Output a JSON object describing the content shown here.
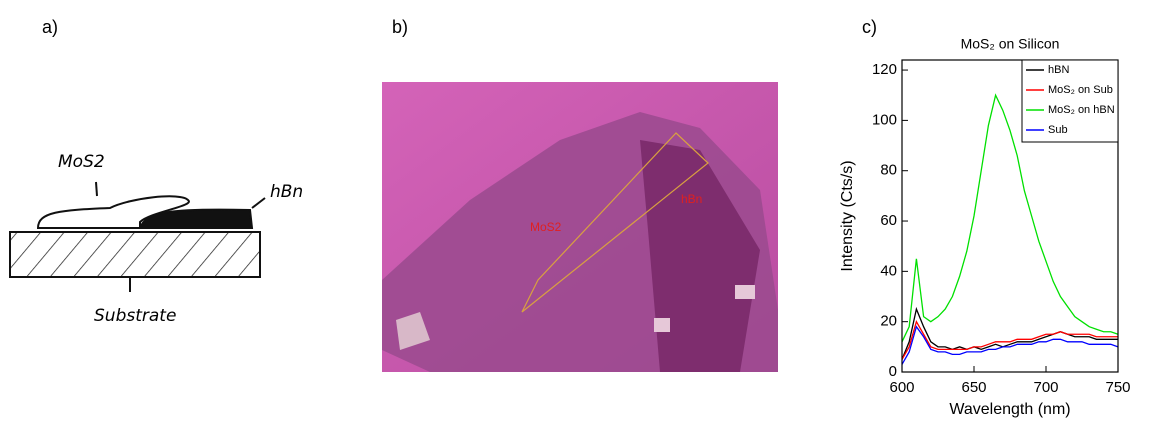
{
  "panels": {
    "a": {
      "label": "a)",
      "mos2_label": "MoS2",
      "hbn_label": "hBn",
      "substrate_label": "Substrate"
    },
    "b": {
      "label": "b)",
      "mos2_label": "MoS2",
      "hbn_label": "hBn"
    },
    "c": {
      "label": "c)"
    }
  },
  "chart_data": {
    "type": "line",
    "title": "MoS₂ on Silicon",
    "x_label": "Wavelength (nm)",
    "y_label": "Intensity (Cts/s)",
    "xlim": [
      600,
      750
    ],
    "xticks": [
      600,
      650,
      700,
      750
    ],
    "ylim": [
      0,
      124
    ],
    "yticks": [
      0,
      20,
      40,
      60,
      80,
      100,
      120
    ],
    "legend": "upper right",
    "x": [
      600,
      605,
      610,
      615,
      620,
      625,
      630,
      635,
      640,
      645,
      650,
      655,
      660,
      665,
      670,
      675,
      680,
      685,
      690,
      695,
      700,
      705,
      710,
      715,
      720,
      725,
      730,
      735,
      740,
      745,
      750
    ],
    "series": [
      {
        "name": "hBN",
        "color": "#000000",
        "values": [
          5,
          12,
          25,
          18,
          12,
          10,
          10,
          9,
          10,
          9,
          10,
          9,
          10,
          11,
          10,
          11,
          12,
          12,
          12,
          13,
          14,
          15,
          16,
          15,
          14,
          14,
          14,
          13,
          13,
          13,
          13
        ]
      },
      {
        "name": "MoS₂ on Sub",
        "color": "#ff0000",
        "values": [
          5,
          10,
          20,
          15,
          10,
          9,
          9,
          9,
          9,
          9,
          10,
          10,
          11,
          12,
          12,
          12,
          13,
          13,
          13,
          14,
          15,
          15,
          16,
          15,
          15,
          15,
          15,
          14,
          14,
          14,
          14
        ]
      },
      {
        "name": "MoS₂ on hBN",
        "color": "#00e000",
        "values": [
          12,
          18,
          45,
          22,
          20,
          22,
          25,
          30,
          38,
          48,
          62,
          80,
          98,
          110,
          104,
          96,
          86,
          72,
          62,
          52,
          44,
          36,
          30,
          26,
          22,
          20,
          18,
          17,
          16,
          16,
          15
        ]
      },
      {
        "name": "Sub",
        "color": "#0000ff",
        "values": [
          3,
          8,
          18,
          14,
          9,
          8,
          8,
          7,
          7,
          8,
          8,
          8,
          9,
          9,
          10,
          10,
          11,
          11,
          11,
          12,
          12,
          13,
          13,
          12,
          12,
          12,
          11,
          11,
          11,
          11,
          10
        ]
      }
    ]
  }
}
